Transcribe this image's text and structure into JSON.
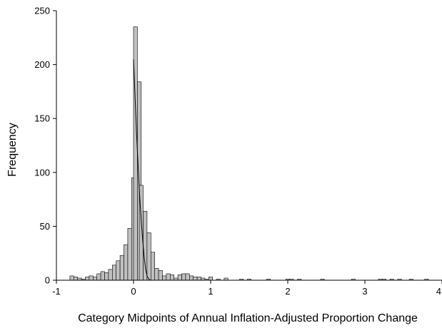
{
  "chart_data": {
    "type": "bar",
    "title": "",
    "xlabel": "Category Midpoints of Annual Inflation-Adjusted Proportion Change",
    "ylabel": "Frequency",
    "xlim": [
      -1,
      4
    ],
    "ylim": [
      0,
      250
    ],
    "x_ticks": [
      -1,
      0,
      1,
      2,
      3,
      4
    ],
    "x_tick_labels": [
      "-1",
      "0",
      "1",
      "2",
      "3",
      "4"
    ],
    "y_ticks": [
      0,
      50,
      100,
      150,
      200,
      250
    ],
    "y_tick_labels": [
      "0",
      "50",
      "100",
      "150",
      "200",
      "250"
    ],
    "grid": false,
    "bin_width": 0.05,
    "bar_color": "#c0c0c0",
    "bar_edge_color": "#000000",
    "bins": [
      {
        "x": -0.8,
        "value": 4
      },
      {
        "x": -0.75,
        "value": 3
      },
      {
        "x": -0.7,
        "value": 2
      },
      {
        "x": -0.65,
        "value": 1
      },
      {
        "x": -0.6,
        "value": 3
      },
      {
        "x": -0.55,
        "value": 4
      },
      {
        "x": -0.5,
        "value": 3
      },
      {
        "x": -0.45,
        "value": 6
      },
      {
        "x": -0.4,
        "value": 8
      },
      {
        "x": -0.35,
        "value": 7
      },
      {
        "x": -0.3,
        "value": 10
      },
      {
        "x": -0.25,
        "value": 14
      },
      {
        "x": -0.2,
        "value": 18
      },
      {
        "x": -0.15,
        "value": 23
      },
      {
        "x": -0.1,
        "value": 33
      },
      {
        "x": -0.05,
        "value": 48
      },
      {
        "x": 0.0,
        "value": 95
      },
      {
        "x": 0.025,
        "value": 235
      },
      {
        "x": 0.075,
        "value": 184
      },
      {
        "x": 0.1,
        "value": 88
      },
      {
        "x": 0.15,
        "value": 64
      },
      {
        "x": 0.2,
        "value": 44
      },
      {
        "x": 0.25,
        "value": 26
      },
      {
        "x": 0.3,
        "value": 11
      },
      {
        "x": 0.35,
        "value": 9
      },
      {
        "x": 0.4,
        "value": 4
      },
      {
        "x": 0.45,
        "value": 6
      },
      {
        "x": 0.5,
        "value": 5
      },
      {
        "x": 0.55,
        "value": 2
      },
      {
        "x": 0.6,
        "value": 5
      },
      {
        "x": 0.65,
        "value": 6
      },
      {
        "x": 0.7,
        "value": 6
      },
      {
        "x": 0.75,
        "value": 4
      },
      {
        "x": 0.8,
        "value": 3
      },
      {
        "x": 0.85,
        "value": 3
      },
      {
        "x": 0.9,
        "value": 2
      },
      {
        "x": 0.95,
        "value": 1
      },
      {
        "x": 1.0,
        "value": 3
      },
      {
        "x": 1.1,
        "value": 1
      },
      {
        "x": 1.2,
        "value": 2
      },
      {
        "x": 1.4,
        "value": 1
      },
      {
        "x": 1.5,
        "value": 1
      },
      {
        "x": 1.75,
        "value": 1
      },
      {
        "x": 2.0,
        "value": 1
      },
      {
        "x": 2.05,
        "value": 1
      },
      {
        "x": 2.15,
        "value": 1
      },
      {
        "x": 2.45,
        "value": 1
      },
      {
        "x": 2.85,
        "value": 1
      },
      {
        "x": 3.2,
        "value": 1
      },
      {
        "x": 3.25,
        "value": 1
      },
      {
        "x": 3.35,
        "value": 1
      },
      {
        "x": 3.45,
        "value": 1
      },
      {
        "x": 3.6,
        "value": 1
      },
      {
        "x": 3.8,
        "value": 1
      }
    ],
    "fit_curve": {
      "color": "#000000",
      "points": [
        [
          0.0,
          205
        ],
        [
          0.02,
          170
        ],
        [
          0.04,
          135
        ],
        [
          0.06,
          105
        ],
        [
          0.08,
          78
        ],
        [
          0.1,
          55
        ],
        [
          0.12,
          36
        ],
        [
          0.14,
          20
        ],
        [
          0.16,
          9
        ],
        [
          0.18,
          3
        ],
        [
          0.2,
          1
        ],
        [
          0.22,
          0
        ]
      ]
    }
  }
}
